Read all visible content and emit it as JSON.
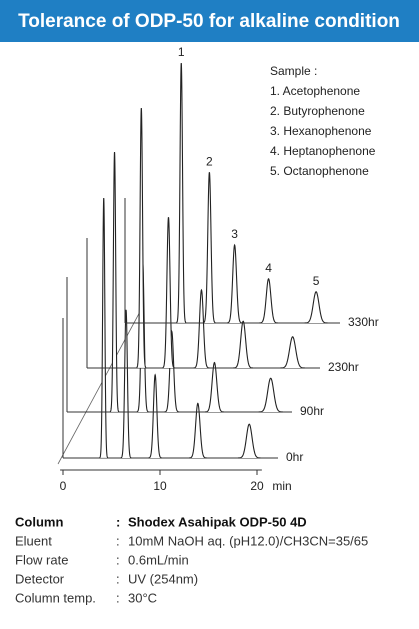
{
  "title": "Tolerance of ODP-50 for alkaline condition",
  "chart_data": {
    "type": "chromatogram",
    "x_label": "min",
    "xlim": [
      -0.3,
      20.5
    ],
    "xticks": [
      0,
      10,
      20
    ],
    "peak_labels": [
      "1",
      "2",
      "3",
      "4",
      "5"
    ],
    "legend_title": "Sample :",
    "legend": [
      "1. Acetophenone",
      "2. Butyrophenone",
      "3. Hexanophenone",
      "4. Heptanophenone",
      "5. Octanophenone"
    ],
    "series": [
      {
        "name": "0hr",
        "times": [
          4.2,
          6.5,
          9.5,
          13.9,
          19.2
        ],
        "heights": [
          100,
          57,
          32,
          21,
          13
        ]
      },
      {
        "name": "90hr",
        "times": [
          4.9,
          7.8,
          10.8,
          15.2,
          21.0
        ],
        "heights": [
          100,
          58,
          31,
          19,
          13
        ]
      },
      {
        "name": "230hr",
        "times": [
          5.6,
          8.4,
          11.8,
          16.1,
          21.2
        ],
        "heights": [
          100,
          58,
          30,
          18,
          12
        ]
      },
      {
        "name": "330hr",
        "times": [
          5.8,
          8.7,
          11.3,
          14.8,
          19.7
        ],
        "heights": [
          100,
          58,
          30,
          17,
          12
        ]
      }
    ]
  },
  "separator": ":",
  "conditions": [
    {
      "label": "Column",
      "value": "Shodex Asahipak ODP-50 4D"
    },
    {
      "label": "Eluent",
      "value": "10mM NaOH aq. (pH12.0)/CH3CN=35/65"
    },
    {
      "label": "Flow rate",
      "value": "0.6mL/min"
    },
    {
      "label": "Detector",
      "value": "UV (254nm)"
    },
    {
      "label": "Column temp.",
      "value": "30°C"
    }
  ]
}
